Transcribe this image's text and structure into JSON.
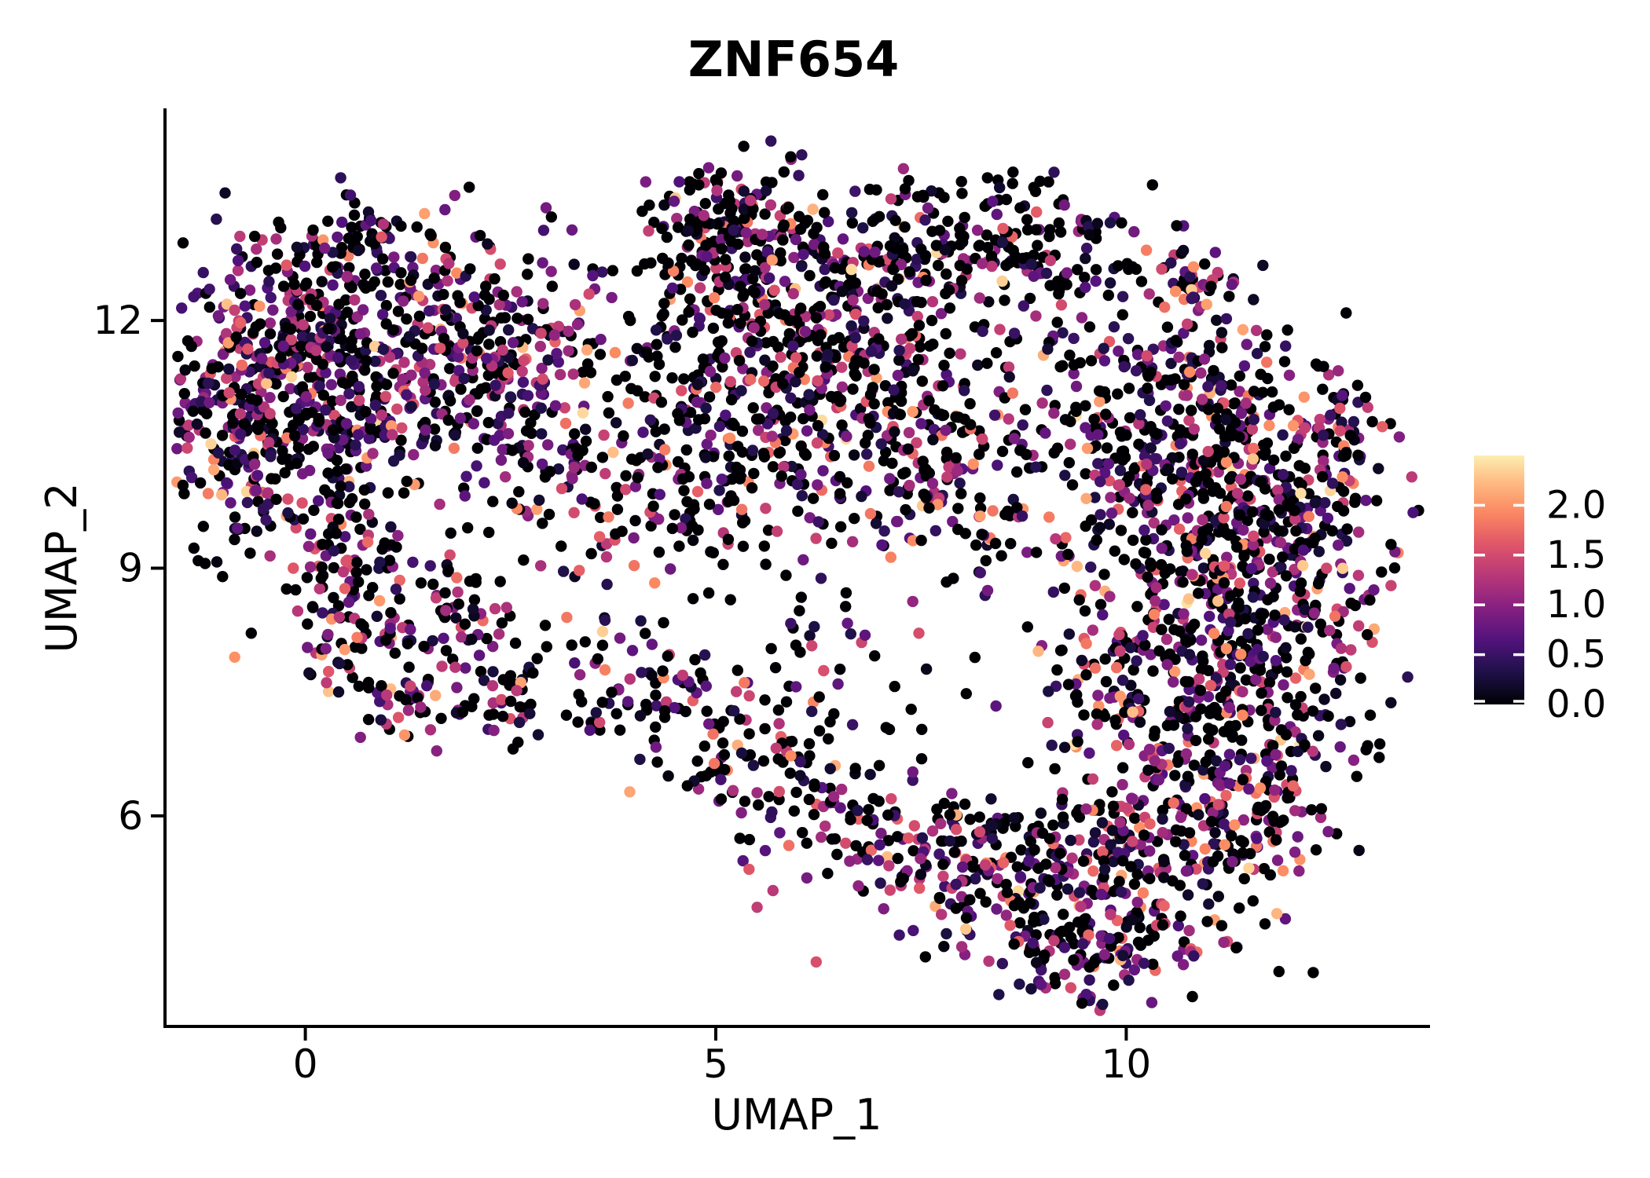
{
  "title": "ZNF654",
  "background_color": "#ffffff",
  "text_color": "#000000",
  "chart_data": {
    "type": "scatter",
    "title": "ZNF654",
    "xlabel": "UMAP_1",
    "ylabel": "UMAP_2",
    "x_ticks": [
      0,
      5,
      10
    ],
    "y_ticks": [
      6,
      9,
      12
    ],
    "x_range": [
      -1.7,
      13.7
    ],
    "y_range": [
      3.45,
      14.55
    ],
    "grid": false,
    "legend_position": "right",
    "point_radius_px": 7.2,
    "n_points": 4745,
    "seed": 7,
    "color_scale": {
      "name": "magma",
      "min": 0.0,
      "max": 2.5,
      "t_cap": 0.97,
      "legend_ticks": [
        {
          "label": "2.0",
          "value": 2.0
        },
        {
          "label": "1.5",
          "value": 1.5
        },
        {
          "label": "1.0",
          "value": 1.0
        },
        {
          "label": "0.5",
          "value": 0.5
        },
        {
          "label": "0.0",
          "value": 0.0
        }
      ],
      "stops": [
        [
          0.0,
          "#000004"
        ],
        [
          0.125,
          "#1e1148"
        ],
        [
          0.25,
          "#51127c"
        ],
        [
          0.375,
          "#852081"
        ],
        [
          0.5,
          "#b73779"
        ],
        [
          0.625,
          "#e05668"
        ],
        [
          0.75,
          "#fc8961"
        ],
        [
          0.875,
          "#febf86"
        ],
        [
          1.0,
          "#fcfdbf"
        ]
      ]
    },
    "value_distribution": {
      "zero_value": 0,
      "nonzero_bins": [
        {
          "w": 0.3,
          "lo": 0.05,
          "hi": 0.55
        },
        {
          "w": 0.29,
          "lo": 0.55,
          "hi": 1.05
        },
        {
          "w": 0.23,
          "lo": 1.05,
          "hi": 1.55
        },
        {
          "w": 0.14,
          "lo": 1.55,
          "hi": 2.05
        },
        {
          "w": 0.04,
          "lo": 2.05,
          "hi": 2.45
        }
      ]
    },
    "clusters_fields": [
      "x",
      "y",
      "sx",
      "sy",
      "n",
      "black_frac"
    ],
    "clusters": [
      [
        0.02,
        11.78,
        0.91,
        0.71,
        330,
        0.4
      ],
      [
        1.36,
        11.12,
        0.86,
        0.66,
        250,
        0.4
      ],
      [
        -0.84,
        10.83,
        0.57,
        0.57,
        140,
        0.4
      ],
      [
        2.41,
        11.88,
        0.67,
        0.52,
        120,
        0.42
      ],
      [
        0.69,
        12.73,
        0.77,
        0.38,
        80,
        0.45
      ],
      [
        -0.36,
        9.98,
        0.67,
        0.43,
        80,
        0.42
      ],
      [
        0.59,
        9.22,
        0.38,
        0.38,
        40,
        0.42
      ],
      [
        0.31,
        8.27,
        0.33,
        0.43,
        45,
        0.42
      ],
      [
        1.26,
        7.6,
        0.48,
        0.38,
        55,
        0.42
      ],
      [
        1.65,
        8.65,
        0.33,
        0.38,
        40,
        0.42
      ],
      [
        0.98,
        8.46,
        0.77,
        0.66,
        40,
        0.45
      ],
      [
        2.99,
        10.55,
        0.57,
        0.57,
        70,
        0.45
      ],
      [
        2.41,
        7.51,
        0.43,
        0.38,
        50,
        0.42
      ],
      [
        4.13,
        7.41,
        0.48,
        0.43,
        60,
        0.42
      ],
      [
        3.56,
        9.22,
        0.57,
        0.76,
        50,
        0.48
      ],
      [
        5.47,
        13.02,
        0.72,
        0.43,
        170,
        0.55
      ],
      [
        5.86,
        12.16,
        0.86,
        0.52,
        130,
        0.52
      ],
      [
        4.9,
        13.49,
        0.38,
        0.24,
        40,
        0.55
      ],
      [
        4.9,
        11.12,
        0.77,
        0.66,
        130,
        0.52
      ],
      [
        6.33,
        11.4,
        0.77,
        0.57,
        110,
        0.52
      ],
      [
        7.39,
        10.55,
        0.67,
        0.66,
        120,
        0.5
      ],
      [
        5.67,
        9.98,
        0.77,
        0.57,
        80,
        0.52
      ],
      [
        4.52,
        9.79,
        0.57,
        0.47,
        50,
        0.5
      ],
      [
        8.15,
        9.98,
        0.57,
        0.52,
        90,
        0.48
      ],
      [
        8.06,
        13.11,
        0.67,
        0.38,
        110,
        0.52
      ],
      [
        8.82,
        12.73,
        0.48,
        0.33,
        60,
        0.5
      ],
      [
        7.39,
        12.54,
        0.38,
        0.28,
        40,
        0.52
      ],
      [
        6.81,
        11.88,
        1.15,
        0.76,
        70,
        0.55
      ],
      [
        9.68,
        11.4,
        0.77,
        0.66,
        80,
        0.5
      ],
      [
        9.88,
        12.73,
        0.57,
        0.47,
        35,
        0.5
      ],
      [
        8.73,
        7.51,
        0.86,
        0.85,
        10,
        0.55
      ],
      [
        10.88,
        12.49,
        0.21,
        0.17,
        35,
        0.45
      ],
      [
        10.93,
        10.93,
        0.67,
        0.57,
        150,
        0.44
      ],
      [
        11.69,
        9.98,
        0.67,
        0.57,
        140,
        0.44
      ],
      [
        10.64,
        9.41,
        0.77,
        0.66,
        150,
        0.44
      ],
      [
        11.22,
        8.27,
        0.86,
        0.76,
        200,
        0.44
      ],
      [
        12.08,
        8.74,
        0.57,
        0.76,
        120,
        0.44
      ],
      [
        10.45,
        7.32,
        0.77,
        0.66,
        150,
        0.44
      ],
      [
        11.6,
        6.84,
        0.67,
        0.57,
        120,
        0.44
      ],
      [
        9.97,
        10.26,
        0.48,
        0.47,
        70,
        0.46
      ],
      [
        12.56,
        10.64,
        0.43,
        0.57,
        60,
        0.46
      ],
      [
        8.73,
        5.23,
        0.77,
        0.52,
        150,
        0.42
      ],
      [
        10.07,
        5.23,
        0.77,
        0.66,
        180,
        0.42
      ],
      [
        11.22,
        5.8,
        0.57,
        0.47,
        110,
        0.42
      ],
      [
        9.68,
        4.28,
        0.57,
        0.33,
        70,
        0.42
      ],
      [
        8.06,
        5.7,
        0.43,
        0.38,
        60,
        0.42
      ],
      [
        5.38,
        6.75,
        0.57,
        0.38,
        60,
        0.5
      ],
      [
        6.24,
        6.08,
        0.53,
        0.38,
        55,
        0.5
      ],
      [
        7.0,
        5.61,
        0.43,
        0.33,
        40,
        0.5
      ],
      [
        6.33,
        7.79,
        0.96,
        0.66,
        50,
        0.52
      ]
    ]
  }
}
